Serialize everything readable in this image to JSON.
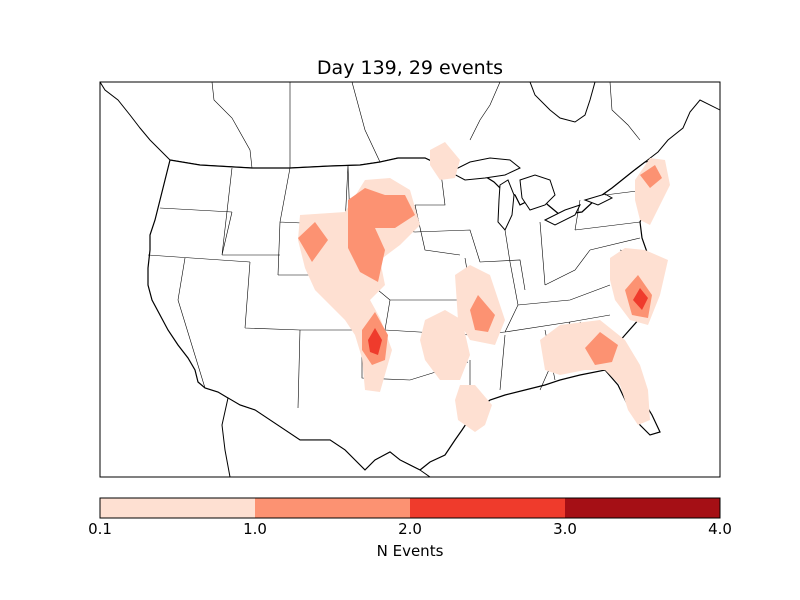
{
  "title": "Day 139, 29 events",
  "colorbar": {
    "label": "N Events",
    "ticks": [
      "0.1",
      "1.0",
      "2.0",
      "3.0",
      "4.0"
    ],
    "colors": [
      "#fee0d2",
      "#fc9272",
      "#ef3b2c",
      "#a50f15"
    ]
  },
  "map": {
    "region": "Continental United States",
    "layers": [
      "coastlines",
      "country-borders",
      "state-borders",
      "event-density-contours"
    ],
    "contour_colors": {
      "level_1": "#fee0d2",
      "level_2": "#fc9272",
      "level_3": "#ef3b2c"
    }
  }
}
